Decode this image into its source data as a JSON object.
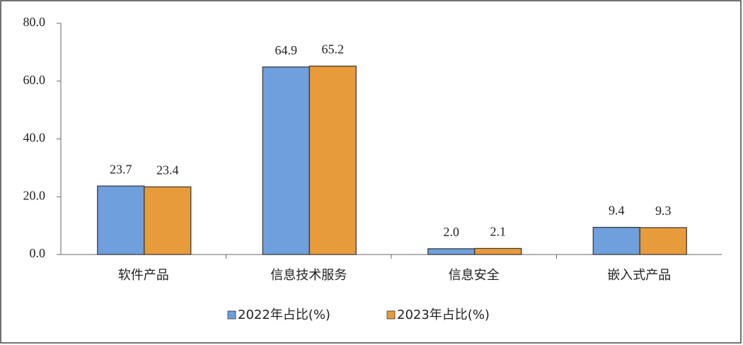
{
  "chart_data": {
    "type": "bar",
    "categories": [
      "软件产品",
      "信息技术服务",
      "信息安全",
      "嵌入式产品"
    ],
    "series": [
      {
        "name": "2022年占比(%)",
        "color": "#6f9fdc",
        "values": [
          23.7,
          64.9,
          2.0,
          9.4
        ],
        "value_labels": [
          "23.7",
          "64.9",
          "2.0",
          "9.4"
        ]
      },
      {
        "name": "2023年占比(%)",
        "color": "#e89b3a",
        "values": [
          23.4,
          65.2,
          2.1,
          9.3
        ],
        "value_labels": [
          "23.4",
          "65.2",
          "2.1",
          "9.3"
        ]
      }
    ],
    "ylim": [
      0,
      80
    ],
    "yticks": [
      {
        "value": 0,
        "label": "0.0"
      },
      {
        "value": 20,
        "label": "20.0"
      },
      {
        "value": 40,
        "label": "40.0"
      },
      {
        "value": 60,
        "label": "60.0"
      },
      {
        "value": 80,
        "label": "80.0"
      }
    ],
    "grid": false,
    "legend": "bottom"
  }
}
